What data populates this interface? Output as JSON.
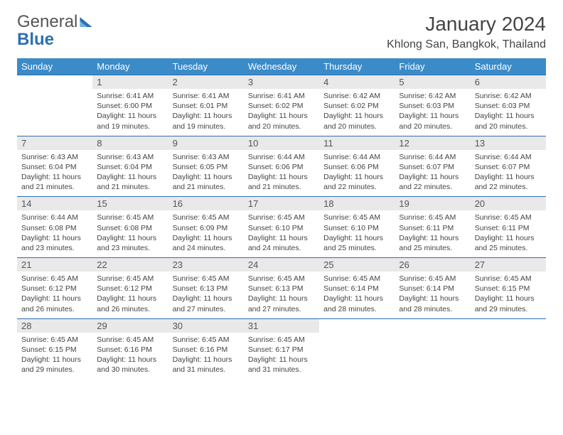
{
  "brand": {
    "part1": "General",
    "part2": "Blue"
  },
  "title": "January 2024",
  "location": "Khlong San, Bangkok, Thailand",
  "colors": {
    "header_blue": "#3b8bc9",
    "rule_blue": "#2d6fb5",
    "daynum_bg": "#e9e9e9",
    "text": "#444444"
  },
  "weekdays": [
    "Sunday",
    "Monday",
    "Tuesday",
    "Wednesday",
    "Thursday",
    "Friday",
    "Saturday"
  ],
  "weeks": [
    {
      "nums": [
        "",
        "1",
        "2",
        "3",
        "4",
        "5",
        "6"
      ],
      "cells": [
        null,
        {
          "sunrise": "Sunrise: 6:41 AM",
          "sunset": "Sunset: 6:00 PM",
          "day1": "Daylight: 11 hours",
          "day2": "and 19 minutes."
        },
        {
          "sunrise": "Sunrise: 6:41 AM",
          "sunset": "Sunset: 6:01 PM",
          "day1": "Daylight: 11 hours",
          "day2": "and 19 minutes."
        },
        {
          "sunrise": "Sunrise: 6:41 AM",
          "sunset": "Sunset: 6:02 PM",
          "day1": "Daylight: 11 hours",
          "day2": "and 20 minutes."
        },
        {
          "sunrise": "Sunrise: 6:42 AM",
          "sunset": "Sunset: 6:02 PM",
          "day1": "Daylight: 11 hours",
          "day2": "and 20 minutes."
        },
        {
          "sunrise": "Sunrise: 6:42 AM",
          "sunset": "Sunset: 6:03 PM",
          "day1": "Daylight: 11 hours",
          "day2": "and 20 minutes."
        },
        {
          "sunrise": "Sunrise: 6:42 AM",
          "sunset": "Sunset: 6:03 PM",
          "day1": "Daylight: 11 hours",
          "day2": "and 20 minutes."
        }
      ]
    },
    {
      "nums": [
        "7",
        "8",
        "9",
        "10",
        "11",
        "12",
        "13"
      ],
      "cells": [
        {
          "sunrise": "Sunrise: 6:43 AM",
          "sunset": "Sunset: 6:04 PM",
          "day1": "Daylight: 11 hours",
          "day2": "and 21 minutes."
        },
        {
          "sunrise": "Sunrise: 6:43 AM",
          "sunset": "Sunset: 6:04 PM",
          "day1": "Daylight: 11 hours",
          "day2": "and 21 minutes."
        },
        {
          "sunrise": "Sunrise: 6:43 AM",
          "sunset": "Sunset: 6:05 PM",
          "day1": "Daylight: 11 hours",
          "day2": "and 21 minutes."
        },
        {
          "sunrise": "Sunrise: 6:44 AM",
          "sunset": "Sunset: 6:06 PM",
          "day1": "Daylight: 11 hours",
          "day2": "and 21 minutes."
        },
        {
          "sunrise": "Sunrise: 6:44 AM",
          "sunset": "Sunset: 6:06 PM",
          "day1": "Daylight: 11 hours",
          "day2": "and 22 minutes."
        },
        {
          "sunrise": "Sunrise: 6:44 AM",
          "sunset": "Sunset: 6:07 PM",
          "day1": "Daylight: 11 hours",
          "day2": "and 22 minutes."
        },
        {
          "sunrise": "Sunrise: 6:44 AM",
          "sunset": "Sunset: 6:07 PM",
          "day1": "Daylight: 11 hours",
          "day2": "and 22 minutes."
        }
      ]
    },
    {
      "nums": [
        "14",
        "15",
        "16",
        "17",
        "18",
        "19",
        "20"
      ],
      "cells": [
        {
          "sunrise": "Sunrise: 6:44 AM",
          "sunset": "Sunset: 6:08 PM",
          "day1": "Daylight: 11 hours",
          "day2": "and 23 minutes."
        },
        {
          "sunrise": "Sunrise: 6:45 AM",
          "sunset": "Sunset: 6:08 PM",
          "day1": "Daylight: 11 hours",
          "day2": "and 23 minutes."
        },
        {
          "sunrise": "Sunrise: 6:45 AM",
          "sunset": "Sunset: 6:09 PM",
          "day1": "Daylight: 11 hours",
          "day2": "and 24 minutes."
        },
        {
          "sunrise": "Sunrise: 6:45 AM",
          "sunset": "Sunset: 6:10 PM",
          "day1": "Daylight: 11 hours",
          "day2": "and 24 minutes."
        },
        {
          "sunrise": "Sunrise: 6:45 AM",
          "sunset": "Sunset: 6:10 PM",
          "day1": "Daylight: 11 hours",
          "day2": "and 25 minutes."
        },
        {
          "sunrise": "Sunrise: 6:45 AM",
          "sunset": "Sunset: 6:11 PM",
          "day1": "Daylight: 11 hours",
          "day2": "and 25 minutes."
        },
        {
          "sunrise": "Sunrise: 6:45 AM",
          "sunset": "Sunset: 6:11 PM",
          "day1": "Daylight: 11 hours",
          "day2": "and 25 minutes."
        }
      ]
    },
    {
      "nums": [
        "21",
        "22",
        "23",
        "24",
        "25",
        "26",
        "27"
      ],
      "cells": [
        {
          "sunrise": "Sunrise: 6:45 AM",
          "sunset": "Sunset: 6:12 PM",
          "day1": "Daylight: 11 hours",
          "day2": "and 26 minutes."
        },
        {
          "sunrise": "Sunrise: 6:45 AM",
          "sunset": "Sunset: 6:12 PM",
          "day1": "Daylight: 11 hours",
          "day2": "and 26 minutes."
        },
        {
          "sunrise": "Sunrise: 6:45 AM",
          "sunset": "Sunset: 6:13 PM",
          "day1": "Daylight: 11 hours",
          "day2": "and 27 minutes."
        },
        {
          "sunrise": "Sunrise: 6:45 AM",
          "sunset": "Sunset: 6:13 PM",
          "day1": "Daylight: 11 hours",
          "day2": "and 27 minutes."
        },
        {
          "sunrise": "Sunrise: 6:45 AM",
          "sunset": "Sunset: 6:14 PM",
          "day1": "Daylight: 11 hours",
          "day2": "and 28 minutes."
        },
        {
          "sunrise": "Sunrise: 6:45 AM",
          "sunset": "Sunset: 6:14 PM",
          "day1": "Daylight: 11 hours",
          "day2": "and 28 minutes."
        },
        {
          "sunrise": "Sunrise: 6:45 AM",
          "sunset": "Sunset: 6:15 PM",
          "day1": "Daylight: 11 hours",
          "day2": "and 29 minutes."
        }
      ]
    },
    {
      "nums": [
        "28",
        "29",
        "30",
        "31",
        "",
        "",
        ""
      ],
      "cells": [
        {
          "sunrise": "Sunrise: 6:45 AM",
          "sunset": "Sunset: 6:15 PM",
          "day1": "Daylight: 11 hours",
          "day2": "and 29 minutes."
        },
        {
          "sunrise": "Sunrise: 6:45 AM",
          "sunset": "Sunset: 6:16 PM",
          "day1": "Daylight: 11 hours",
          "day2": "and 30 minutes."
        },
        {
          "sunrise": "Sunrise: 6:45 AM",
          "sunset": "Sunset: 6:16 PM",
          "day1": "Daylight: 11 hours",
          "day2": "and 31 minutes."
        },
        {
          "sunrise": "Sunrise: 6:45 AM",
          "sunset": "Sunset: 6:17 PM",
          "day1": "Daylight: 11 hours",
          "day2": "and 31 minutes."
        },
        null,
        null,
        null
      ]
    }
  ]
}
